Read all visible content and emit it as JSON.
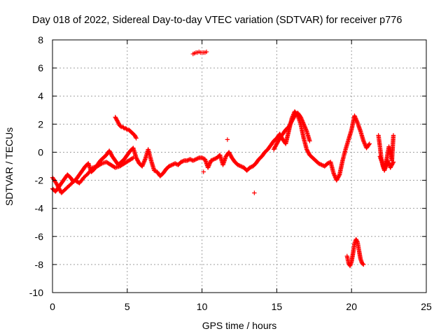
{
  "chart_data": {
    "type": "scatter",
    "title": "Day 018 of 2022, Sidereal Day-to-day VTEC variation (SDTVAR) for receiver p776",
    "xlabel": "GPS time / hours",
    "ylabel": "SDTVAR / TECUs",
    "xlim": [
      0,
      25
    ],
    "ylim": [
      -10,
      8
    ],
    "x_ticks": [
      0,
      5,
      10,
      15,
      20,
      25
    ],
    "y_ticks": [
      -10,
      -8,
      -6,
      -4,
      -2,
      0,
      2,
      4,
      6,
      8
    ],
    "x_tick_labels": [
      "0",
      "5",
      "10",
      "15",
      "20",
      "25"
    ],
    "y_tick_labels": [
      "-10",
      "-8",
      "-6",
      "-4",
      "-2",
      "0",
      "2",
      "4",
      "6",
      "8"
    ],
    "grid": true,
    "marker": "plus",
    "color": "#ff0000",
    "series": [
      {
        "name": "main_trace",
        "x": [
          0.0,
          0.2,
          0.4,
          0.6,
          0.8,
          1.0,
          1.2,
          1.4,
          1.6,
          1.8,
          2.0,
          2.2,
          2.4,
          2.6,
          2.8,
          3.0,
          3.2,
          3.4,
          3.6,
          3.8,
          4.0,
          4.2,
          4.4,
          4.6,
          4.8,
          5.0,
          5.2,
          5.4,
          5.6,
          5.8,
          6.0,
          6.2,
          6.4,
          6.6,
          6.8,
          7.0,
          7.2,
          7.4,
          7.6,
          7.8,
          8.0,
          8.2,
          8.4,
          8.6,
          8.8,
          9.0,
          9.2,
          9.4,
          9.6,
          9.8,
          10.0,
          10.2,
          10.4,
          10.6,
          10.8,
          11.0,
          11.2,
          11.4,
          11.6,
          11.8,
          12.0,
          12.2,
          12.4,
          12.6,
          12.8,
          13.0,
          13.2,
          13.4,
          13.6,
          13.8,
          14.0,
          14.2,
          14.4,
          14.6,
          14.8,
          15.0,
          15.2,
          15.4,
          15.6,
          15.8,
          16.0,
          16.2,
          16.4,
          16.6,
          16.8,
          17.0,
          17.2,
          17.4,
          17.6,
          17.8,
          18.0,
          18.2,
          18.4,
          18.6,
          18.8,
          19.0,
          19.2,
          19.4,
          19.6,
          19.8,
          20.0,
          20.2,
          20.4,
          20.6,
          20.8,
          21.0,
          21.2
        ],
        "y": [
          -2.6,
          -2.8,
          -2.5,
          -2.2,
          -1.9,
          -1.6,
          -1.8,
          -2.1,
          -1.9,
          -1.6,
          -1.3,
          -1.0,
          -0.8,
          -1.4,
          -1.2,
          -0.9,
          -0.6,
          -0.4,
          -0.2,
          0.1,
          -0.3,
          -0.6,
          -0.9,
          -0.7,
          -0.5,
          -0.2,
          0.1,
          0.3,
          -0.4,
          -0.8,
          -1.0,
          -0.5,
          0.2,
          -0.6,
          -1.3,
          -1.4,
          -1.7,
          -1.5,
          -1.2,
          -1.0,
          -0.9,
          -0.8,
          -0.9,
          -0.7,
          -0.6,
          -0.6,
          -0.5,
          -0.6,
          -0.5,
          -0.4,
          -0.4,
          -0.5,
          -1.1,
          -0.6,
          -0.5,
          -0.4,
          -0.2,
          -0.9,
          -0.3,
          0.0,
          -0.4,
          -0.7,
          -0.9,
          -1.0,
          -1.1,
          -1.3,
          -1.1,
          -1.0,
          -0.8,
          -0.5,
          -0.3,
          0.0,
          0.2,
          0.5,
          0.8,
          1.0,
          1.3,
          0.9,
          0.6,
          1.5,
          2.4,
          2.9,
          2.6,
          2.0,
          1.0,
          0.2,
          -0.2,
          -0.4,
          -0.6,
          -0.8,
          -0.9,
          -1.0,
          -0.8,
          -0.7,
          -1.5,
          -2.0,
          -1.6,
          -0.6,
          0.2,
          0.9,
          1.6,
          2.6,
          2.1,
          1.5,
          0.8,
          0.3,
          0.6
        ]
      },
      {
        "name": "lower_band",
        "x": [
          0.0,
          0.3,
          0.6,
          0.9,
          1.2,
          1.5,
          1.8,
          2.1,
          2.4,
          2.7,
          3.0,
          3.3,
          3.6,
          3.9,
          4.2,
          4.5,
          4.8,
          5.1,
          5.4
        ],
        "y": [
          -1.8,
          -2.3,
          -2.9,
          -2.6,
          -2.3,
          -2.0,
          -2.2,
          -1.8,
          -1.5,
          -1.1,
          -1.0,
          -0.8,
          -0.7,
          -0.9,
          -1.1,
          -1.0,
          -0.8,
          -0.6,
          -0.4
        ]
      },
      {
        "name": "segment_4h",
        "x": [
          4.2,
          4.3,
          4.4,
          4.5,
          4.6,
          4.7,
          4.8,
          4.9,
          5.0,
          5.1,
          5.2,
          5.3,
          5.4,
          5.5,
          5.6
        ],
        "y": [
          2.5,
          2.3,
          2.1,
          1.9,
          1.8,
          1.8,
          1.7,
          1.7,
          1.6,
          1.6,
          1.5,
          1.4,
          1.3,
          1.2,
          1.0
        ]
      },
      {
        "name": "segment_15h",
        "x": [
          14.8,
          15.0,
          15.2,
          15.4,
          15.6,
          15.8,
          16.0,
          16.2,
          16.4,
          16.6,
          16.8,
          17.0,
          17.2
        ],
        "y": [
          0.2,
          0.6,
          1.0,
          1.3,
          1.6,
          1.8,
          2.2,
          2.6,
          2.8,
          2.5,
          2.0,
          1.5,
          0.8
        ]
      },
      {
        "name": "segment_22h",
        "x": [
          21.8,
          21.9,
          22.0,
          22.1,
          22.2,
          22.3,
          22.4,
          22.5,
          22.6,
          22.7,
          22.8
        ],
        "y": [
          1.2,
          0.4,
          -0.5,
          -0.9,
          -1.2,
          -0.8,
          -0.2,
          0.4,
          0.0,
          -0.6,
          1.2
        ]
      },
      {
        "name": "segment_22h_lower",
        "x": [
          21.9,
          22.0,
          22.1,
          22.2,
          22.3,
          22.4,
          22.5,
          22.6,
          22.7,
          22.8
        ],
        "y": [
          -0.3,
          -0.6,
          -1.0,
          -1.3,
          -1.0,
          -0.6,
          -0.8,
          -1.1,
          -0.9,
          -0.7
        ]
      },
      {
        "name": "outlier_top",
        "x": [
          9.4,
          9.5,
          9.6,
          9.7,
          9.8,
          9.9,
          10.0,
          10.1,
          10.2,
          10.3
        ],
        "y": [
          7.0,
          7.05,
          7.1,
          7.1,
          7.15,
          7.1,
          7.1,
          7.1,
          7.1,
          7.15
        ]
      },
      {
        "name": "outlier_low",
        "x": [
          19.7,
          19.8,
          19.9,
          20.0,
          20.1,
          20.2,
          20.3,
          20.4,
          20.5,
          20.6,
          20.7,
          20.8
        ],
        "y": [
          -7.4,
          -7.9,
          -8.1,
          -7.8,
          -7.2,
          -6.5,
          -6.2,
          -6.4,
          -7.0,
          -7.6,
          -7.9,
          -8.0
        ]
      },
      {
        "name": "isolated",
        "x": [
          13.5,
          11.7,
          10.1
        ],
        "y": [
          -2.9,
          0.9,
          -1.4
        ]
      }
    ]
  }
}
